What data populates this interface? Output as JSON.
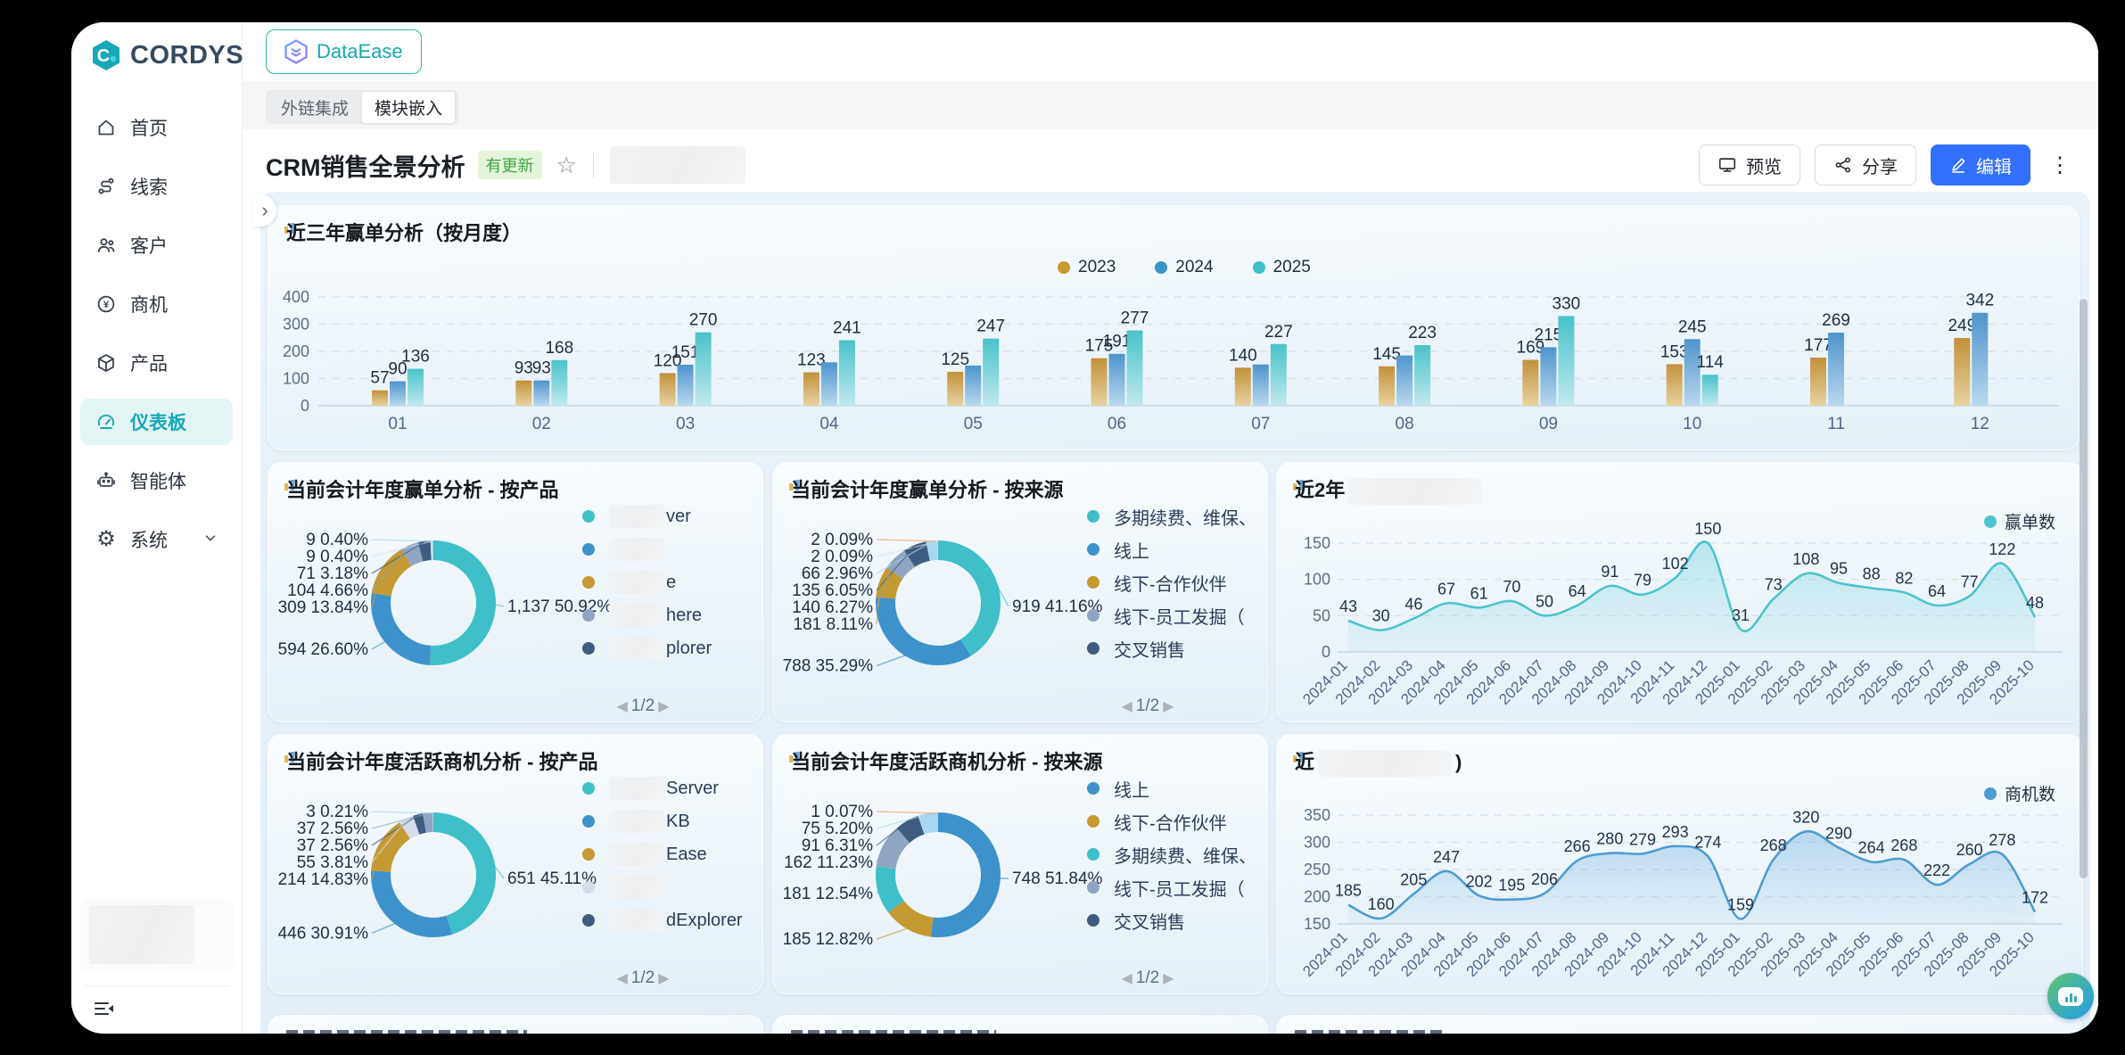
{
  "brand": {
    "name": "CORDYS"
  },
  "sidebar": {
    "items": [
      {
        "label": "首页",
        "icon": "home"
      },
      {
        "label": "线索",
        "icon": "leads"
      },
      {
        "label": "客户",
        "icon": "customers"
      },
      {
        "label": "商机",
        "icon": "opportunity"
      },
      {
        "label": "产品",
        "icon": "product"
      },
      {
        "label": "仪表板",
        "icon": "dashboard",
        "active": true
      },
      {
        "label": "智能体",
        "icon": "agent"
      },
      {
        "label": "系统",
        "icon": "gear",
        "expandable": true
      }
    ]
  },
  "topbar": {
    "app_button": "DataEase",
    "tabs": [
      {
        "label": "外链集成",
        "active": false
      },
      {
        "label": "模块嵌入",
        "active": true
      }
    ]
  },
  "header": {
    "title": "CRM销售全景分析",
    "badge": "有更新",
    "preview_label": "预览",
    "share_label": "分享",
    "edit_label": "编辑"
  },
  "colors": {
    "teal": "#3EBFC9",
    "blue": "#3D92CB",
    "gold": "#C59A33",
    "slate": "#90A5C1",
    "navy": "#3F5C80",
    "paleBlue": "#A9D7F2",
    "lavender": "#D5DBE8",
    "orange": "#F0A066",
    "grayLight": "#D9DFE8",
    "accent": "#3370FF",
    "lineTeal": "#4CC4CD",
    "lineBlue": "#4D9CD4"
  },
  "chart_data": {
    "note": "see charts"
  },
  "charts": {
    "bar": {
      "type": "bar",
      "title": "近三年赢单分析（按月度）",
      "categories": [
        "01",
        "02",
        "03",
        "04",
        "05",
        "06",
        "07",
        "08",
        "09",
        "10",
        "11",
        "12"
      ],
      "ylim": [
        0,
        400
      ],
      "yticks": [
        0,
        100,
        200,
        300,
        400
      ],
      "series": [
        {
          "name": "2023",
          "color_key": "gold",
          "values": [
            57,
            93,
            120,
            123,
            125,
            175,
            140,
            145,
            169,
            153,
            177,
            249
          ],
          "labels": [
            "57",
            "93",
            "120",
            "123",
            "125",
            "175",
            "140",
            "145",
            "169",
            "153",
            "177",
            "249"
          ]
        },
        {
          "name": "2024",
          "color_key": "blue",
          "values": [
            90,
            93,
            151,
            160,
            148,
            191,
            152,
            185,
            215,
            245,
            269,
            342
          ],
          "labels": [
            "90",
            "93",
            "151",
            "",
            "",
            "191",
            "",
            "",
            "215",
            "245",
            "269",
            "342"
          ]
        },
        {
          "name": "2025",
          "color_key": "teal",
          "values": [
            136,
            168,
            270,
            241,
            247,
            277,
            227,
            223,
            330,
            114,
            null,
            null
          ],
          "labels": [
            "136",
            "168",
            "270",
            "241",
            "247",
            "277",
            "227",
            "223",
            "330",
            "114",
            "",
            ""
          ]
        }
      ]
    },
    "donut_win_product": {
      "type": "pie",
      "title": "当前会计年度赢单分析 - 按产品",
      "slices": [
        {
          "value": "1,137",
          "pct": 50.92,
          "color_key": "teal"
        },
        {
          "value": "594",
          "pct": 26.6,
          "color_key": "blue"
        },
        {
          "value": "309",
          "pct": 13.84,
          "color_key": "gold"
        },
        {
          "value": "104",
          "pct": 4.66,
          "color_key": "slate"
        },
        {
          "value": "71",
          "pct": 3.18,
          "color_key": "navy"
        },
        {
          "value": "9",
          "pct": 0.4,
          "color_key": "grayLight"
        },
        {
          "value": "9",
          "pct": 0.4,
          "color_key": "paleBlue"
        }
      ],
      "legend": [
        {
          "color_key": "teal",
          "redacted": true,
          "text": "ver"
        },
        {
          "color_key": "blue",
          "redacted": true,
          "text": ""
        },
        {
          "color_key": "gold",
          "redacted": true,
          "text": "e"
        },
        {
          "color_key": "slate",
          "redacted": true,
          "text": "here"
        },
        {
          "color_key": "navy",
          "redacted": true,
          "text": "plorer"
        }
      ],
      "pagination": "1/2"
    },
    "donut_win_source": {
      "type": "pie",
      "title": "当前会计年度赢单分析 - 按来源",
      "slices": [
        {
          "value": "919",
          "pct": 41.16,
          "color_key": "teal"
        },
        {
          "value": "788",
          "pct": 35.29,
          "color_key": "blue"
        },
        {
          "value": "181",
          "pct": 8.11,
          "color_key": "gold"
        },
        {
          "value": "140",
          "pct": 6.27,
          "color_key": "slate"
        },
        {
          "value": "135",
          "pct": 6.05,
          "color_key": "navy"
        },
        {
          "value": "66",
          "pct": 2.96,
          "color_key": "paleBlue"
        },
        {
          "value": "2",
          "pct": 0.09,
          "color_key": "grayLight"
        },
        {
          "value": "2",
          "pct": 0.09,
          "color_key": "orange"
        }
      ],
      "legend": [
        {
          "color_key": "teal",
          "redacted": false,
          "text": "多期续费、维保、"
        },
        {
          "color_key": "blue",
          "redacted": false,
          "text": "线上"
        },
        {
          "color_key": "gold",
          "redacted": false,
          "text": "线下-合作伙伴"
        },
        {
          "color_key": "slate",
          "redacted": false,
          "text": "线下-员工发掘（"
        },
        {
          "color_key": "navy",
          "redacted": false,
          "text": "交叉销售"
        }
      ],
      "pagination": "1/2"
    },
    "donut_opp_product": {
      "type": "pie",
      "title": "当前会计年度活跃商机分析 - 按产品",
      "slices": [
        {
          "value": "651",
          "pct": 45.11,
          "color_key": "teal"
        },
        {
          "value": "446",
          "pct": 30.91,
          "color_key": "blue"
        },
        {
          "value": "214",
          "pct": 14.83,
          "color_key": "gold"
        },
        {
          "value": "55",
          "pct": 3.81,
          "color_key": "lavender"
        },
        {
          "value": "37",
          "pct": 2.56,
          "color_key": "navy"
        },
        {
          "value": "37",
          "pct": 2.56,
          "color_key": "slate"
        },
        {
          "value": "3",
          "pct": 0.21,
          "color_key": "paleBlue"
        }
      ],
      "legend": [
        {
          "color_key": "teal",
          "redacted": true,
          "text": "Server"
        },
        {
          "color_key": "blue",
          "redacted": true,
          "text": "KB"
        },
        {
          "color_key": "gold",
          "redacted": true,
          "text": "Ease"
        },
        {
          "color_key": "lavender",
          "redacted": true,
          "text": ""
        },
        {
          "color_key": "navy",
          "redacted": true,
          "text": "dExplorer"
        }
      ],
      "pagination": "1/2"
    },
    "donut_opp_source": {
      "type": "pie",
      "title": "当前会计年度活跃商机分析 - 按来源",
      "slices": [
        {
          "value": "748",
          "pct": 51.84,
          "color_key": "blue"
        },
        {
          "value": "185",
          "pct": 12.82,
          "color_key": "gold"
        },
        {
          "value": "181",
          "pct": 12.54,
          "color_key": "teal"
        },
        {
          "value": "162",
          "pct": 11.23,
          "color_key": "slate"
        },
        {
          "value": "91",
          "pct": 6.31,
          "color_key": "navy"
        },
        {
          "value": "75",
          "pct": 5.2,
          "color_key": "paleBlue"
        },
        {
          "value": "1",
          "pct": 0.07,
          "color_key": "orange"
        }
      ],
      "legend": [
        {
          "color_key": "blue",
          "redacted": false,
          "text": "线上"
        },
        {
          "color_key": "gold",
          "redacted": false,
          "text": "线下-合作伙伴"
        },
        {
          "color_key": "teal",
          "redacted": false,
          "text": "多期续费、维保、"
        },
        {
          "color_key": "slate",
          "redacted": false,
          "text": "线下-员工发掘（"
        },
        {
          "color_key": "navy",
          "redacted": false,
          "text": "交叉销售"
        }
      ],
      "pagination": "1/2"
    },
    "line_win": {
      "type": "area",
      "title_prefix": "近2年",
      "title_redacted": true,
      "title_suffix": "",
      "legend": "赢单数",
      "color_key": "lineTeal",
      "ymin": 0,
      "ymax": 150,
      "yticks": [
        0,
        50,
        100,
        150
      ],
      "x": [
        "2024-01",
        "2024-02",
        "2024-03",
        "2024-04",
        "2024-05",
        "2024-06",
        "2024-07",
        "2024-08",
        "2024-09",
        "2024-10",
        "2024-11",
        "2024-12",
        "2025-01",
        "2025-02",
        "2025-03",
        "2025-04",
        "2025-05",
        "2025-06",
        "2025-07",
        "2025-08",
        "2025-09",
        "2025-10"
      ],
      "values": [
        43,
        30,
        46,
        67,
        61,
        70,
        50,
        64,
        91,
        79,
        102,
        150,
        31,
        73,
        108,
        95,
        88,
        82,
        64,
        77,
        122,
        48
      ]
    },
    "line_opp": {
      "type": "area",
      "title_prefix": "近",
      "title_redacted": true,
      "title_suffix": ")",
      "legend": "商机数",
      "color_key": "lineBlue",
      "ymin": 150,
      "ymax": 350,
      "yticks": [
        150,
        200,
        250,
        300,
        350
      ],
      "x": [
        "2024-01",
        "2024-02",
        "2024-03",
        "2024-04",
        "2024-05",
        "2024-06",
        "2024-07",
        "2024-08",
        "2024-09",
        "2024-10",
        "2024-11",
        "2024-12",
        "2025-01",
        "2025-02",
        "2025-03",
        "2025-04",
        "2025-05",
        "2025-06",
        "2025-07",
        "2025-08",
        "2025-09",
        "2025-10"
      ],
      "values": [
        185,
        160,
        205,
        247,
        202,
        195,
        206,
        266,
        280,
        279,
        293,
        274,
        159,
        268,
        320,
        290,
        264,
        268,
        222,
        260,
        278,
        172
      ]
    }
  }
}
